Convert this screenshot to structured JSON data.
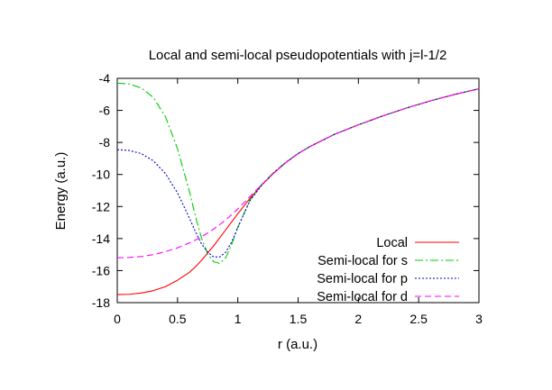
{
  "chart_data": {
    "type": "line",
    "title": "Local and semi-local pseudopotentials with j=l-1/2",
    "xlabel": "r (a.u.)",
    "ylabel": "Energy (a.u.)",
    "xlim": [
      0,
      3
    ],
    "ylim": [
      -18,
      -4
    ],
    "xticks": [
      0,
      0.5,
      1,
      1.5,
      2,
      2.5,
      3
    ],
    "xtick_labels": [
      "0",
      "0.5",
      "1",
      "1.5",
      "2",
      "2.5",
      "3"
    ],
    "yticks": [
      -18,
      -16,
      -14,
      -12,
      -10,
      -8,
      -6,
      -4
    ],
    "ytick_labels": [
      "-18",
      "-16",
      "-14",
      "-12",
      "-10",
      "-8",
      "-6",
      "-4"
    ],
    "grid": false,
    "legend_position": "bottom-right",
    "x": [
      0,
      0.1,
      0.2,
      0.3,
      0.4,
      0.5,
      0.6,
      0.65,
      0.7,
      0.75,
      0.8,
      0.85,
      0.9,
      0.95,
      1.0,
      1.1,
      1.2,
      1.3,
      1.4,
      1.5,
      1.6,
      1.8,
      2.0,
      2.2,
      2.4,
      2.6,
      2.8,
      3.0
    ],
    "series": [
      {
        "name": "Local",
        "color": "#ff0000",
        "dash": "solid",
        "values": [
          -17.5,
          -17.48,
          -17.4,
          -17.25,
          -17.0,
          -16.6,
          -16.1,
          -15.75,
          -15.35,
          -14.9,
          -14.45,
          -13.95,
          -13.45,
          -12.95,
          -12.45,
          -11.5,
          -10.65,
          -9.9,
          -9.25,
          -8.7,
          -8.25,
          -7.5,
          -6.9,
          -6.35,
          -5.85,
          -5.4,
          -5.0,
          -4.65
        ]
      },
      {
        "name": "Semi-local for s",
        "color": "#00cc00",
        "dash": "dashdot",
        "values": [
          -4.3,
          -4.35,
          -4.6,
          -5.2,
          -6.4,
          -8.4,
          -11.1,
          -12.65,
          -14.0,
          -14.95,
          -15.45,
          -15.55,
          -15.2,
          -14.35,
          -13.3,
          -11.6,
          -10.6,
          -9.85,
          -9.22,
          -8.68,
          -8.24,
          -7.5,
          -6.9,
          -6.35,
          -5.85,
          -5.4,
          -5.0,
          -4.65
        ]
      },
      {
        "name": "Semi-local for p",
        "color": "#0000cc",
        "dash": "dotted",
        "values": [
          -8.45,
          -8.5,
          -8.7,
          -9.15,
          -9.95,
          -11.15,
          -12.75,
          -13.6,
          -14.35,
          -14.85,
          -15.15,
          -15.15,
          -14.85,
          -14.2,
          -13.3,
          -11.65,
          -10.65,
          -9.88,
          -9.24,
          -8.69,
          -8.25,
          -7.5,
          -6.9,
          -6.35,
          -5.85,
          -5.4,
          -5.0,
          -4.65
        ]
      },
      {
        "name": "Semi-local for d",
        "color": "#ff00ff",
        "dash": "dashed",
        "values": [
          -15.2,
          -15.18,
          -15.12,
          -15.0,
          -14.82,
          -14.58,
          -14.27,
          -14.09,
          -13.88,
          -13.65,
          -13.4,
          -13.13,
          -12.83,
          -12.5,
          -12.15,
          -11.38,
          -10.62,
          -9.9,
          -9.25,
          -8.7,
          -8.25,
          -7.5,
          -6.9,
          -6.35,
          -5.85,
          -5.4,
          -5.0,
          -4.65
        ]
      }
    ]
  }
}
